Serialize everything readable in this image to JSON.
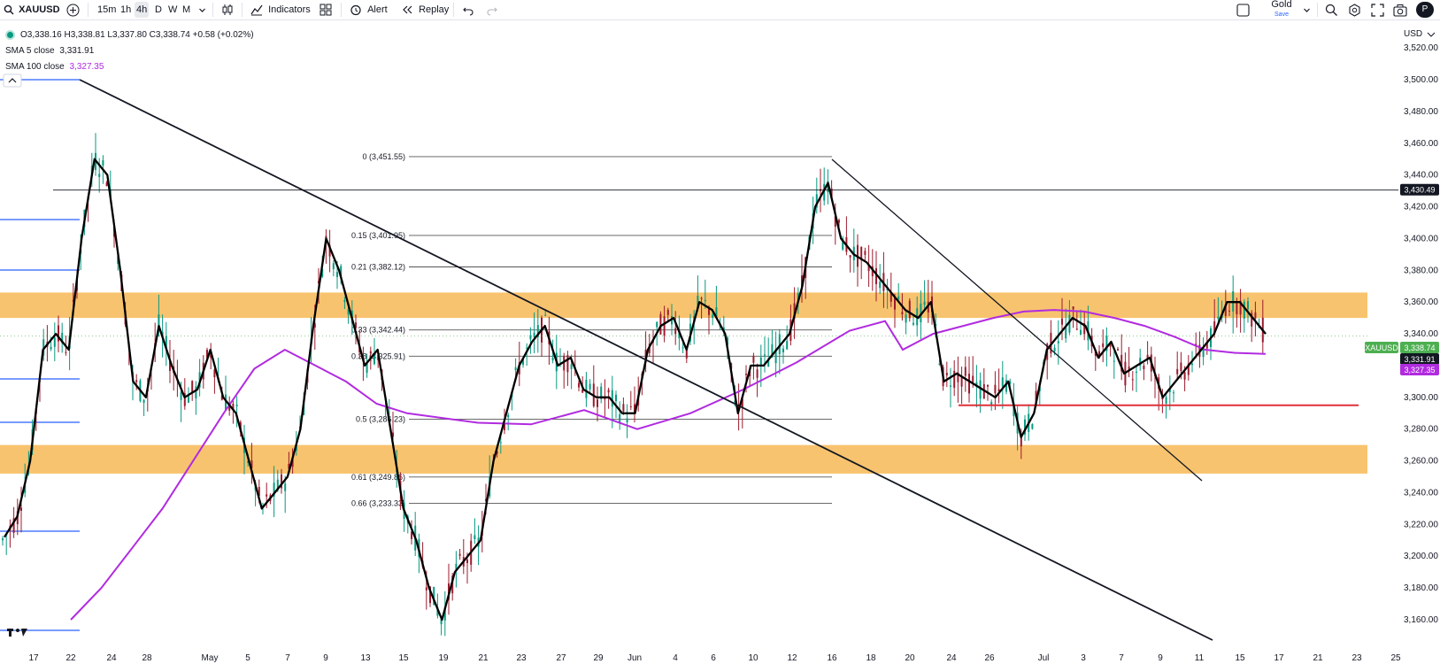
{
  "toolbar": {
    "symbol": "XAUUSD",
    "timeframes": [
      "15m",
      "1h",
      "4h",
      "D",
      "W",
      "M"
    ],
    "active_timeframe": "4h",
    "indicators_label": "Indicators",
    "alert_label": "Alert",
    "replay_label": "Replay",
    "layout_name": "Gold",
    "layout_sub": "Save",
    "avatar_letter": "P"
  },
  "legend": {
    "ohlc": "O3,338.16 H3,338.81 L3,337.80 C3,338.74 +0.58 (+0.02%)",
    "sma5_label": "SMA 5 close",
    "sma5_value": "3,331.91",
    "sma100_label": "SMA 100 close",
    "sma100_value": "3,327.35"
  },
  "colors": {
    "sma5": "#000000",
    "sma100": "#b12be0",
    "zone": "#f7b955",
    "support_line": "#e0303a",
    "up_candle": "#089981",
    "down_candle": "#9b1c2e",
    "last_price": "#4caf50"
  },
  "chart_data": {
    "type": "candlestick",
    "symbol": "XAUUSD",
    "currency_label": "USD",
    "y_ticks": [
      "3,520.00",
      "3,500.00",
      "3,480.00",
      "3,460.00",
      "3,440.00",
      "3,420.00",
      "3,400.00",
      "3,380.00",
      "3,360.00",
      "3,340.00",
      "3,320.00",
      "3,300.00",
      "3,280.00",
      "3,260.00",
      "3,240.00",
      "3,220.00",
      "3,200.00",
      "3,180.00",
      "3,160.00"
    ],
    "y_range": [
      3160,
      3520
    ],
    "x_ticks": [
      "17",
      "22",
      "24",
      "28",
      "May",
      "5",
      "7",
      "9",
      "13",
      "15",
      "19",
      "21",
      "23",
      "27",
      "29",
      "Jun",
      "4",
      "6",
      "10",
      "12",
      "16",
      "18",
      "20",
      "24",
      "26",
      "Jul",
      "3",
      "7",
      "9",
      "11",
      "15",
      "17",
      "21",
      "23",
      "25"
    ],
    "price_tags": [
      {
        "label": "3,430.49",
        "price": 3430.49,
        "style": "dark"
      },
      {
        "label": "XAUUSD",
        "price": 3338.74,
        "style": "name"
      },
      {
        "label": "3,338.74",
        "price": 3338.74,
        "style": "last"
      },
      {
        "label": "3,331.91",
        "price": 3331.91,
        "style": "dark"
      },
      {
        "label": "3,327.35",
        "price": 3327.35,
        "style": "purple"
      }
    ],
    "fib_levels": [
      {
        "label": "0 (3,451.55)",
        "price": 3451.55
      },
      {
        "label": "0.15 (3,401.95)",
        "price": 3401.95
      },
      {
        "label": "0.21 (3,382.12)",
        "price": 3382.12
      },
      {
        "label": "0.33 (3,342.44)",
        "price": 3342.44
      },
      {
        "label": "0.38 (3,325.91)",
        "price": 3325.91
      },
      {
        "label": "0.5 (3,286.23)",
        "price": 3286.23
      },
      {
        "label": "0.61 (3,249.86)",
        "price": 3249.86
      },
      {
        "label": "0.66 (3,233.33)",
        "price": 3233.33
      }
    ],
    "zones": [
      {
        "from": 3350,
        "to": 3366
      },
      {
        "from": 3252,
        "to": 3270
      }
    ],
    "horizontal_line": 3430.49,
    "support_line": 3295,
    "sma5": [
      3212,
      3225,
      3260,
      3330,
      3340,
      3330,
      3400,
      3450,
      3440,
      3380,
      3310,
      3300,
      3345,
      3320,
      3300,
      3305,
      3330,
      3300,
      3290,
      3260,
      3230,
      3240,
      3250,
      3280,
      3345,
      3400,
      3380,
      3350,
      3320,
      3330,
      3280,
      3230,
      3210,
      3180,
      3160,
      3190,
      3200,
      3210,
      3260,
      3290,
      3320,
      3335,
      3345,
      3320,
      3325,
      3305,
      3300,
      3300,
      3290,
      3290,
      3330,
      3345,
      3350,
      3330,
      3360,
      3355,
      3340,
      3290,
      3320,
      3320,
      3330,
      3340,
      3370,
      3420,
      3435,
      3400,
      3390,
      3385,
      3375,
      3365,
      3355,
      3350,
      3360,
      3310,
      3315,
      3310,
      3305,
      3300,
      3310,
      3275,
      3290,
      3330,
      3340,
      3350,
      3345,
      3325,
      3335,
      3315,
      3320,
      3325,
      3300,
      3310,
      3320,
      3330,
      3340,
      3360,
      3360,
      3350,
      3340
    ],
    "sma100_start": [
      3160,
      3180,
      3205,
      3230,
      3260,
      3290,
      3318,
      3330,
      3320,
      3310,
      3296,
      3290
    ],
    "sma100_end": [
      3330,
      3340,
      3345,
      3350,
      3354,
      3355,
      3354,
      3350,
      3345,
      3338,
      3330,
      3328,
      3327.35
    ],
    "trendlines": [
      {
        "from": [
          "22",
          3500
        ],
        "to": [
          "17",
          3165
        ]
      },
      {
        "from": [
          "16",
          3451.55
        ],
        "to": [
          "15",
          3259
        ]
      }
    ]
  }
}
